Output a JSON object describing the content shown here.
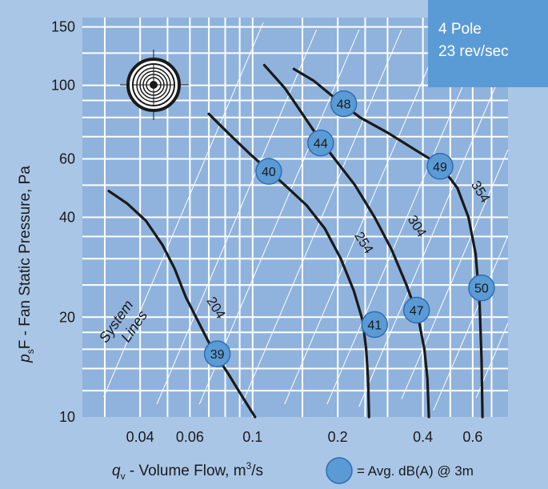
{
  "chart_data": {
    "type": "line",
    "title": "",
    "xlabel": {
      "symbol": "q",
      "subscript": "v",
      "text": " - Volume Flow, m",
      "sup": "3",
      "tail": "/s"
    },
    "ylabel": {
      "symbol": "p",
      "subscript": "s",
      "text": "F - Fan Static Pressure, Pa"
    },
    "x_scale": "log",
    "y_scale": "log",
    "xlim": [
      0.025,
      0.8
    ],
    "ylim": [
      10,
      160
    ],
    "x_ticks": [
      0.04,
      0.06,
      0.1,
      0.2,
      0.4,
      0.6
    ],
    "x_tick_labels": [
      "0.04",
      "0.06",
      "0.1",
      "0.2",
      "0.4",
      "0.6"
    ],
    "y_ticks": [
      10,
      20,
      40,
      60,
      100,
      150
    ],
    "y_tick_labels": [
      "10",
      "20",
      "40",
      "60",
      "100",
      "150"
    ],
    "grid": true,
    "info_box": [
      "4 Pole",
      "23 rev/sec"
    ],
    "legend_text": "= Avg. dB(A) @ 3m",
    "system_lines_label": [
      "System",
      "Lines"
    ],
    "colors": {
      "background": "#a9c6e6",
      "plot_area": "#8fb3dc",
      "grid": "#ffffff",
      "curve": "#1a1a1a",
      "marker_fill": "#5b9bd5",
      "marker_stroke": "#2e6db4",
      "info_box": "#5b9bd5"
    },
    "series": [
      {
        "name": "204",
        "x": [
          0.031,
          0.036,
          0.042,
          0.048,
          0.053,
          0.058,
          0.064,
          0.072,
          0.082,
          0.092,
          0.102
        ],
        "y": [
          48,
          44,
          39,
          33,
          28,
          23,
          19.5,
          16,
          13.5,
          11.5,
          10
        ]
      },
      {
        "name": "254",
        "x": [
          0.07,
          0.083,
          0.098,
          0.112,
          0.13,
          0.155,
          0.18,
          0.205,
          0.228,
          0.245,
          0.252,
          0.256,
          0.258
        ],
        "y": [
          82,
          71,
          62,
          56,
          50,
          43.5,
          37,
          30,
          24,
          19.5,
          16,
          13,
          10
        ]
      },
      {
        "name": "304",
        "x": [
          0.11,
          0.13,
          0.15,
          0.17,
          0.195,
          0.23,
          0.27,
          0.31,
          0.35,
          0.385,
          0.405,
          0.415,
          0.42
        ],
        "y": [
          115,
          98,
          82,
          70,
          60,
          50,
          40,
          32,
          25,
          20,
          16,
          13,
          10
        ]
      },
      {
        "name": "354",
        "x": [
          0.14,
          0.165,
          0.2,
          0.24,
          0.3,
          0.38,
          0.46,
          0.53,
          0.58,
          0.615,
          0.635,
          0.645,
          0.65
        ],
        "y": [
          112,
          103,
          90,
          80,
          72,
          63.5,
          57.5,
          49,
          40,
          31,
          22,
          15,
          10
        ]
      }
    ],
    "markers": [
      {
        "x": 0.075,
        "y": 15.5,
        "label": "39"
      },
      {
        "x": 0.114,
        "y": 55,
        "label": "40"
      },
      {
        "x": 0.27,
        "y": 19,
        "label": "41"
      },
      {
        "x": 0.174,
        "y": 67,
        "label": "44"
      },
      {
        "x": 0.38,
        "y": 21,
        "label": "47"
      },
      {
        "x": 0.21,
        "y": 88,
        "label": "48"
      },
      {
        "x": 0.46,
        "y": 57,
        "label": "49"
      },
      {
        "x": 0.645,
        "y": 24.5,
        "label": "50"
      }
    ],
    "curve_labels": [
      {
        "text": "204",
        "x": 0.072,
        "y": 21,
        "rotate": 58
      },
      {
        "text": "254",
        "x": 0.24,
        "y": 33,
        "rotate": 58
      },
      {
        "text": "304",
        "x": 0.37,
        "y": 37,
        "rotate": 58
      },
      {
        "text": "354",
        "x": 0.62,
        "y": 47,
        "rotate": 58
      }
    ]
  }
}
